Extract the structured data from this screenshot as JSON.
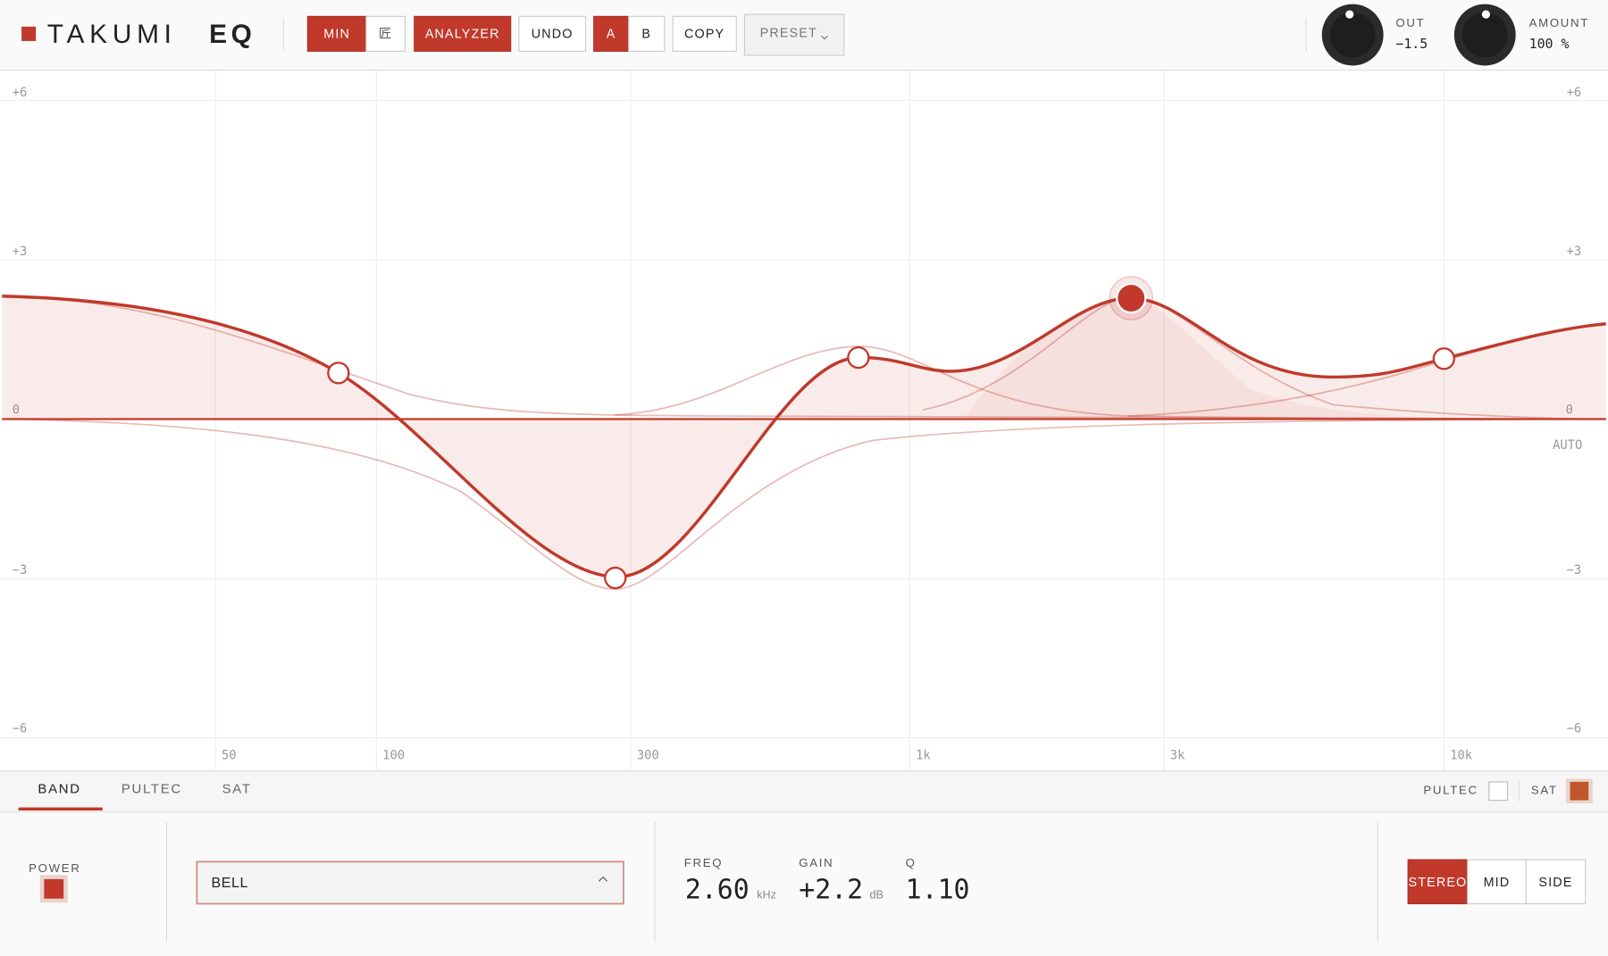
{
  "header": {
    "logo_light": "TAKUMI",
    "logo_bold": "EQ",
    "buttons": [
      "MIN",
      "匠",
      "ANALYZER",
      "UNDO",
      "A",
      "B",
      "COPY"
    ],
    "preset": "PRESET",
    "out_label": "OUT",
    "out_value": "−1.5",
    "amount_label": "AMOUNT",
    "amount_value": "100 %"
  },
  "graph": {
    "y_labels": [
      "+6",
      "+3",
      "0",
      "−3",
      "−6"
    ],
    "x_labels": [
      "50",
      "100",
      "300",
      "1k",
      "3k",
      "10k"
    ],
    "auto": "AUTO"
  },
  "tabs": [
    "BAND",
    "PULTEC",
    "SAT"
  ],
  "toggles": {
    "pultec": "PULTEC",
    "sat": "SAT"
  },
  "band": {
    "power": "POWER",
    "type": "BELL",
    "freq_label": "FREQ",
    "freq_value": "2.60",
    "freq_unit": "kHz",
    "gain_label": "GAIN",
    "gain_value": "+2.2",
    "gain_unit": "dB",
    "q_label": "Q",
    "q_value": "1.10"
  },
  "channel": [
    "STEREO",
    "MID",
    "SIDE"
  ]
}
